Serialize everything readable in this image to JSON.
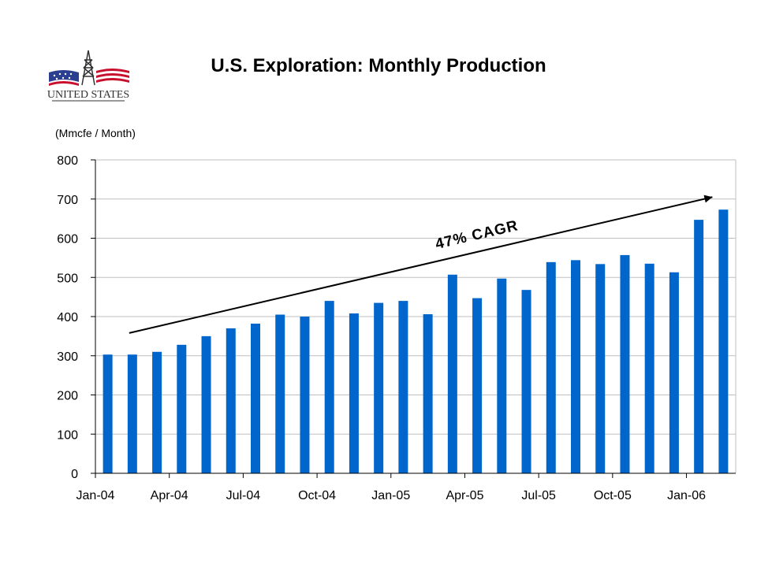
{
  "title": "U.S. Exploration: Monthly Production",
  "unit_label": "(Mmcfe / Month)",
  "logo": {
    "text": "UNITED STATES"
  },
  "annotation": "47% CAGR",
  "colors": {
    "bar": "#0066cc",
    "grid": "#bfbfbf",
    "axis": "#000000"
  },
  "chart_data": {
    "type": "bar",
    "title": "U.S. Exploration: Monthly Production",
    "ylabel": "(Mmcfe / Month)",
    "xlabel": "",
    "ylim": [
      0,
      800
    ],
    "yticks": [
      0,
      100,
      200,
      300,
      400,
      500,
      600,
      700,
      800
    ],
    "grid": true,
    "categories": [
      "Jan-04",
      "Feb-04",
      "Mar-04",
      "Apr-04",
      "May-04",
      "Jun-04",
      "Jul-04",
      "Aug-04",
      "Sep-04",
      "Oct-04",
      "Nov-04",
      "Dec-04",
      "Jan-05",
      "Feb-05",
      "Mar-05",
      "Apr-05",
      "May-05",
      "Jun-05",
      "Jul-05",
      "Aug-05",
      "Sep-05",
      "Oct-05",
      "Nov-05",
      "Dec-05",
      "Jan-06",
      "Feb-06"
    ],
    "xtick_labels": [
      "Jan-04",
      "Apr-04",
      "Jul-04",
      "Oct-04",
      "Jan-05",
      "Apr-05",
      "Jul-05",
      "Oct-05",
      "Jan-06"
    ],
    "values": [
      303,
      303,
      310,
      328,
      350,
      370,
      382,
      405,
      400,
      440,
      408,
      435,
      440,
      406,
      507,
      447,
      497,
      468,
      539,
      544,
      534,
      557,
      535,
      513,
      647,
      673
    ],
    "annotations": [
      {
        "text": "47% CAGR",
        "type": "trend-arrow",
        "from": {
          "x": "Feb-04",
          "y": 358
        },
        "to": {
          "x": "Feb-06",
          "y": 705
        }
      }
    ]
  }
}
